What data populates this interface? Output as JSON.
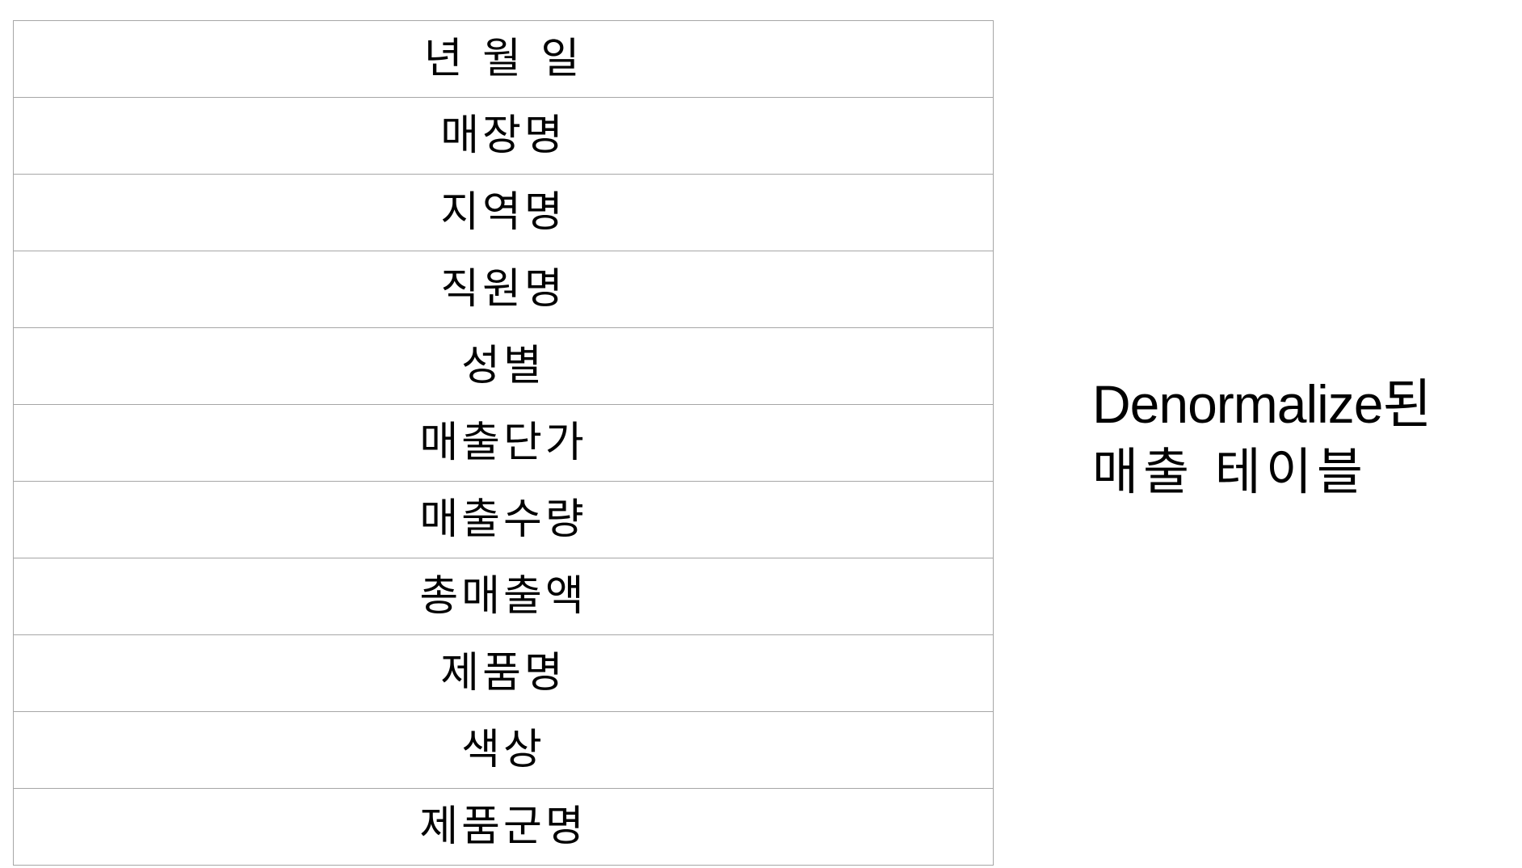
{
  "table": {
    "rows": [
      "년 월 일",
      "매장명",
      "지역명",
      "직원명",
      "성별",
      "매출단가",
      "매출수량",
      "총매출액",
      "제품명",
      "색상",
      "제품군명"
    ]
  },
  "caption": {
    "line1": "Denormalize된",
    "line2": "매출 테이블"
  }
}
